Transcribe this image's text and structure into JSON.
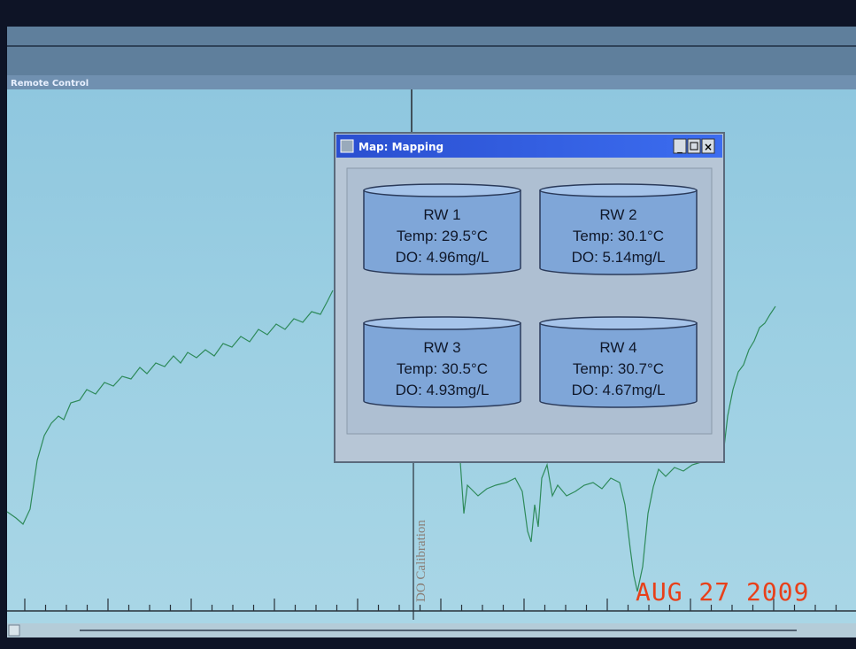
{
  "window": {
    "title": "Remote Control"
  },
  "dialog": {
    "title": "Map: Mapping",
    "tanks": [
      {
        "name": "RW 1",
        "temp": "Temp: 29.5°C",
        "do": "DO: 4.96mg/L"
      },
      {
        "name": "RW 2",
        "temp": "Temp: 30.1°C",
        "do": "DO: 5.14mg/L"
      },
      {
        "name": "RW 3",
        "temp": "Temp: 30.5°C",
        "do": "DO: 4.93mg/L"
      },
      {
        "name": "RW 4",
        "temp": "Temp: 30.7°C",
        "do": "DO: 4.67mg/L"
      }
    ]
  },
  "annotation": "DO Calibration",
  "date_stamp": "AUG 27 2009"
}
